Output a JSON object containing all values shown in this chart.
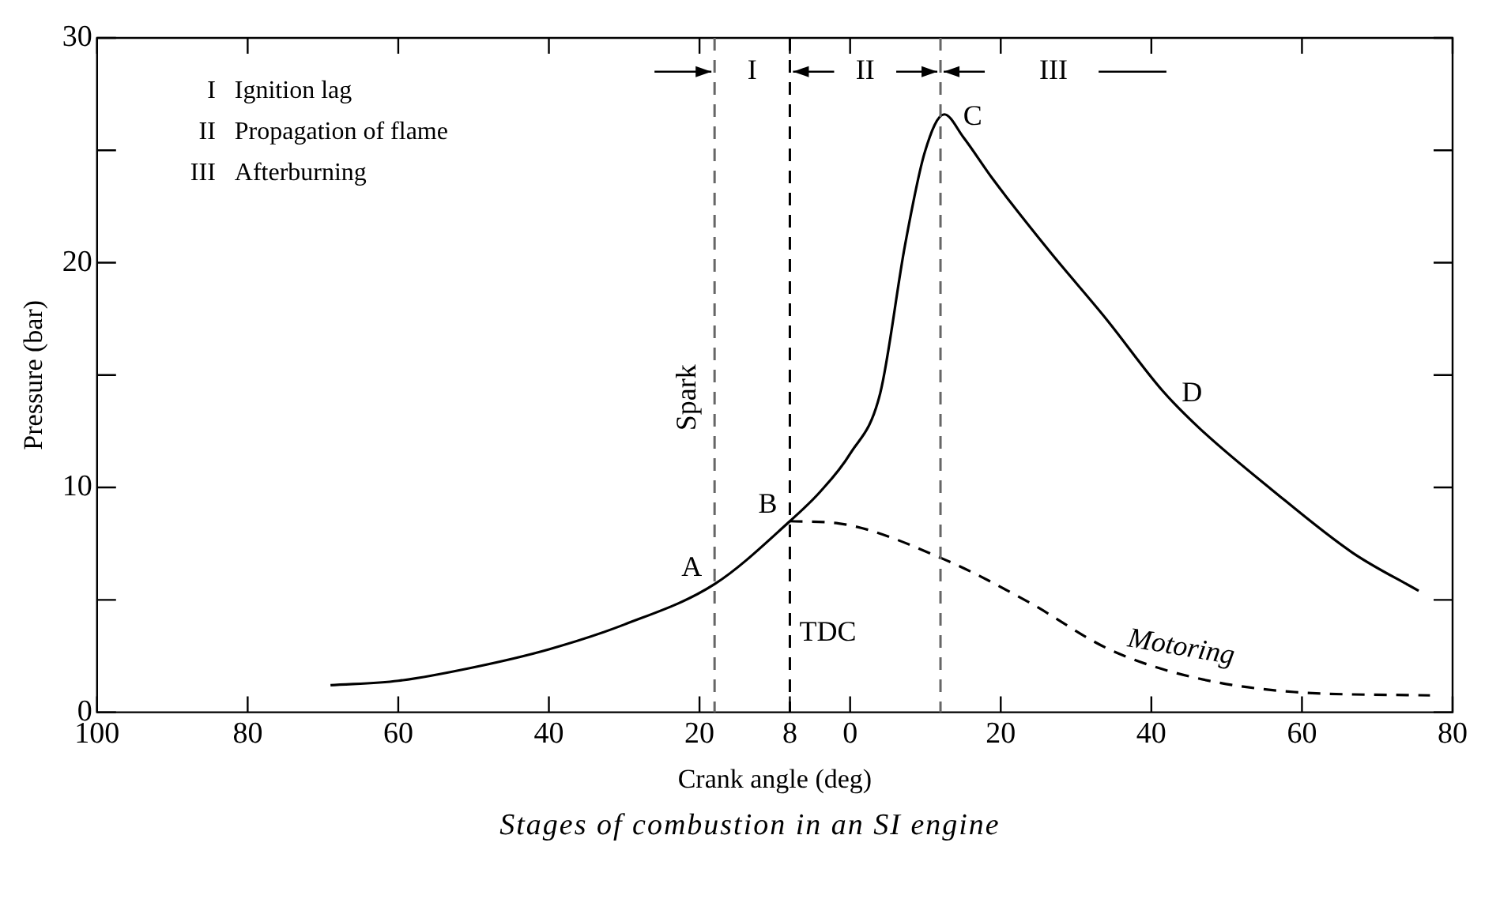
{
  "chart_data": {
    "type": "line",
    "xlabel": "Crank angle (deg)",
    "ylabel": "Pressure (bar)",
    "xlim": [
      -100,
      80
    ],
    "ylim": [
      0,
      30
    ],
    "xticks": [
      {
        "value": -100,
        "label": "100"
      },
      {
        "value": -80,
        "label": "80"
      },
      {
        "value": -60,
        "label": "60"
      },
      {
        "value": -40,
        "label": "40"
      },
      {
        "value": -20,
        "label": "20"
      },
      {
        "value": -8,
        "label": "8"
      },
      0,
      20,
      40,
      60,
      80
    ],
    "yticks": [
      0,
      {
        "value": 5,
        "label": null
      },
      10,
      {
        "value": 15,
        "label": null
      },
      20,
      {
        "value": 25,
        "label": null
      },
      30
    ],
    "grid": false,
    "legend": false,
    "marker": "none",
    "series": [
      {
        "color": "#000000",
        "line_style": "solid",
        "x": [
          -69,
          -60,
          -50,
          -40,
          -30,
          -18,
          -8,
          -4,
          0,
          4,
          7.3,
          9.9,
          12.5,
          15,
          19,
          26.5,
          34,
          41.5,
          46.5,
          56,
          66.7,
          75.5
        ],
        "values": [
          1.2,
          1.4,
          2.0,
          2.8,
          3.9,
          5.7,
          8.5,
          9.8,
          11.5,
          14.2,
          20.8,
          24.9,
          26.6,
          25.6,
          23.7,
          20.5,
          17.5,
          14.3,
          12.6,
          9.9,
          7.1,
          5.4
        ]
      },
      {
        "name": "Motoring",
        "color": "#000000",
        "line_style": "dashed",
        "x": [
          -8,
          -1.5,
          12.5,
          23.7,
          34.4,
          45,
          59,
          77
        ],
        "values": [
          8.5,
          8.4,
          6.8,
          4.9,
          2.8,
          1.6,
          0.9,
          0.75
        ]
      }
    ],
    "ref_lines": [
      {
        "axis": "x",
        "value": -18,
        "label": "Spark",
        "color": "#666666",
        "line_style": "dashed"
      },
      {
        "axis": "x",
        "value": -8,
        "label": "TDC",
        "color": "#000000",
        "line_style": "dashed"
      },
      {
        "axis": "x",
        "value": 12,
        "color": "#666666",
        "line_style": "dashed"
      }
    ],
    "annotations": [
      "I Ignition lag",
      "II Propagation of flame",
      "III Afterburning",
      {
        "text": "I",
        "x": -13,
        "y": 28.5
      },
      {
        "text": "II",
        "x": 2,
        "y": 28.5
      },
      {
        "text": "III",
        "x": 27,
        "y": 28.5
      },
      {
        "text": "A",
        "x": -18,
        "y": 5.7
      },
      {
        "text": "B",
        "x": -8,
        "y": 8.5
      },
      {
        "text": "C",
        "x": 12.5,
        "y": 26.6
      },
      {
        "text": "D",
        "x": 41.5,
        "y": 14.3
      },
      "Stages of combustion in an SI engine"
    ]
  }
}
